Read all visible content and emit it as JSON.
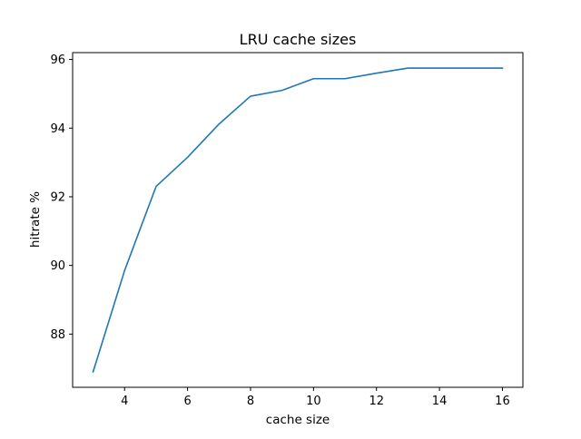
{
  "chart_data": {
    "type": "line",
    "title": "LRU cache sizes",
    "xlabel": "cache size",
    "ylabel": "hitrate %",
    "xlim": [
      2.35,
      16.65
    ],
    "ylim": [
      86.45,
      96.2
    ],
    "xticks": [
      4,
      6,
      8,
      10,
      12,
      14,
      16
    ],
    "yticks": [
      88,
      90,
      92,
      94,
      96
    ],
    "xtick_labels": [
      "4",
      "6",
      "8",
      "10",
      "12",
      "14",
      "16"
    ],
    "ytick_labels": [
      "88",
      "90",
      "92",
      "94",
      "96"
    ],
    "grid": false,
    "legend": "none",
    "series": [
      {
        "color": "#1f77b4",
        "x": [
          3,
          4,
          5,
          6,
          7,
          8,
          9,
          10,
          11,
          12,
          13,
          14,
          15,
          16
        ],
        "y": [
          86.9,
          89.85,
          92.3,
          93.15,
          94.12,
          94.93,
          95.1,
          95.44,
          95.44,
          95.6,
          95.75,
          95.75,
          95.75,
          95.75
        ]
      }
    ]
  }
}
